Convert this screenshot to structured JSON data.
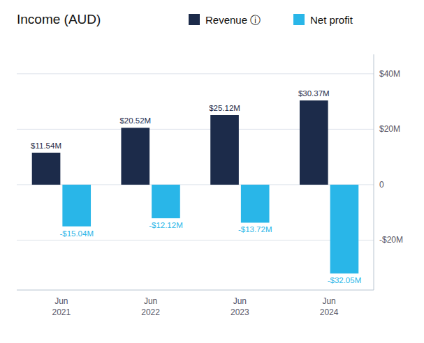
{
  "chart_data": {
    "type": "bar",
    "title": "Income (AUD)",
    "categories": [
      "Jun\n2021",
      "Jun\n2022",
      "Jun\n2023",
      "Jun\n2024"
    ],
    "series": [
      {
        "name": "Revenue ⓘ",
        "color": "#1c2b4a",
        "values": [
          11.54,
          20.52,
          25.12,
          30.37
        ],
        "value_labels": [
          "$11.54M",
          "$20.52M",
          "$25.12M",
          "$30.37M"
        ]
      },
      {
        "name": "Net profit",
        "color": "#29b6e8",
        "values": [
          -15.04,
          -12.12,
          -13.72,
          -32.05
        ],
        "value_labels": [
          "-$15.04M",
          "-$12.12M",
          "-$13.72M",
          "-$32.05M"
        ]
      }
    ],
    "ylim": [
      -38,
      47
    ],
    "yticks": [
      {
        "value": -20,
        "label": "-$20M"
      },
      0,
      {
        "value": 20,
        "label": "$20M"
      },
      {
        "value": 40,
        "label": "$40M"
      }
    ],
    "grid": true,
    "legend": "top",
    "data_labels": true
  }
}
